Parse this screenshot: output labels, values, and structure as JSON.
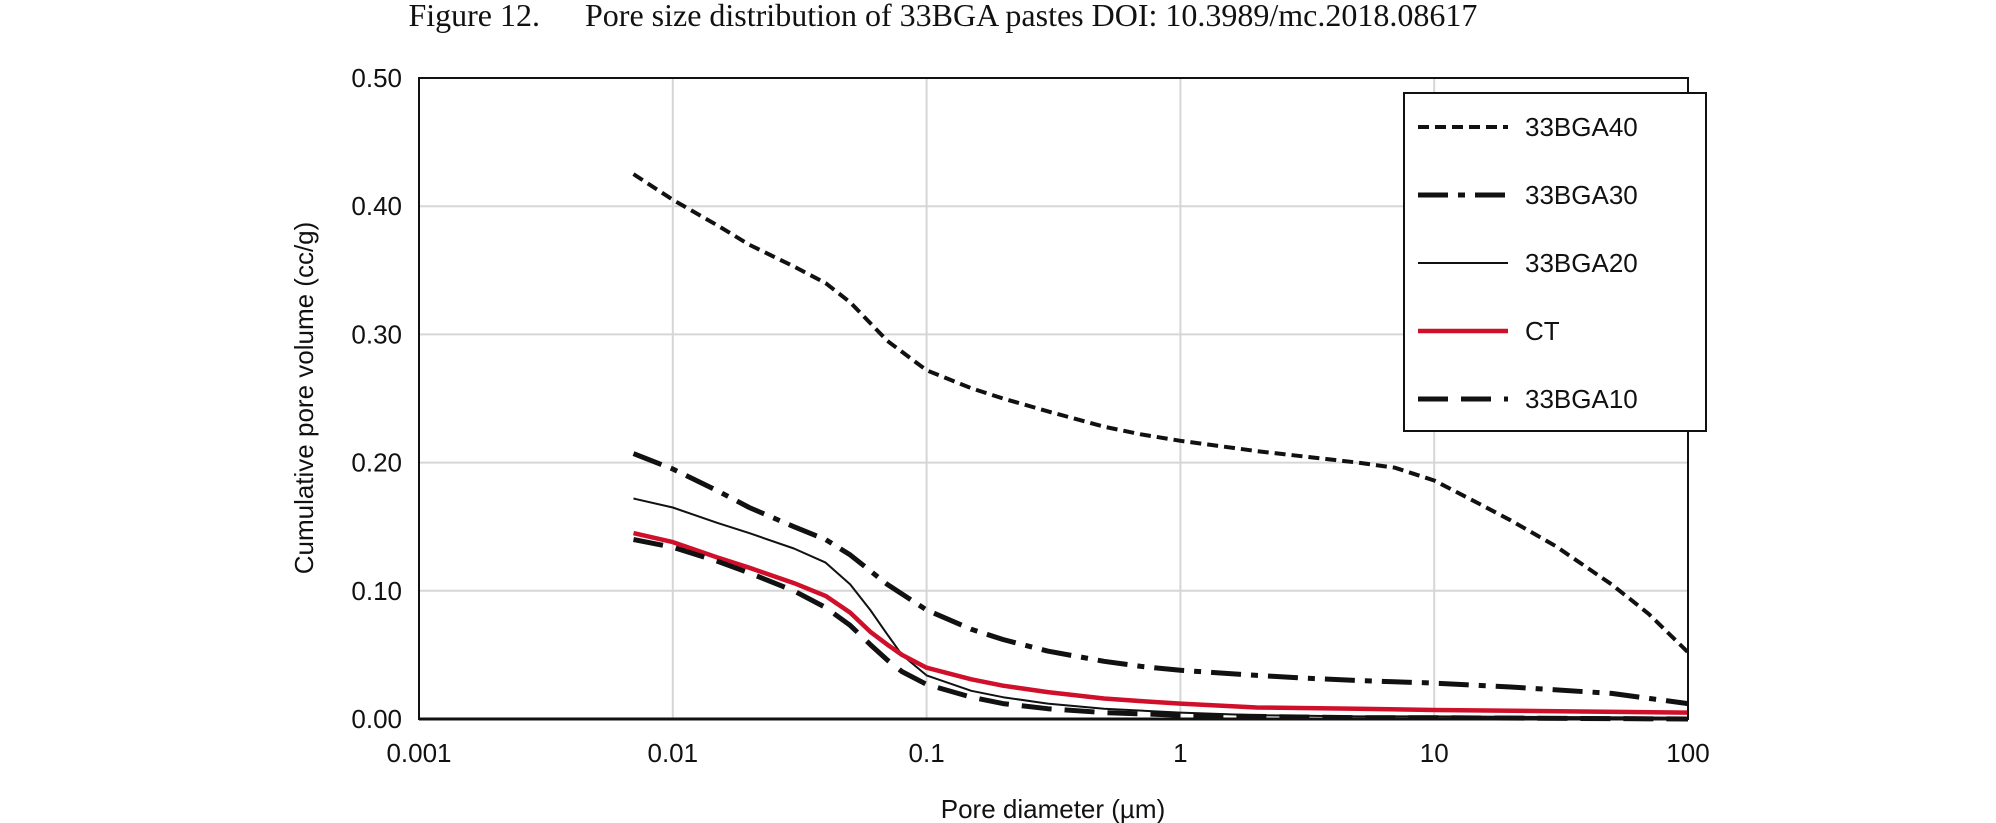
{
  "figure_label": "Figure 12.",
  "chart_data": {
    "type": "line",
    "title": "Pore size distribution of 33BGA pastes DOI: 10.3989/mc.2018.08617",
    "xlabel": "Pore diameter (µm)",
    "ylabel": "Cumulative pore volume (cc/g)",
    "x_scale": "log",
    "xlim": [
      0.001,
      100
    ],
    "ylim": [
      0,
      0.5
    ],
    "x_ticks": [
      {
        "value": 0.001,
        "label": "0.001"
      },
      {
        "value": 0.01,
        "label": "0.01"
      },
      {
        "value": 0.1,
        "label": "0.1"
      },
      {
        "value": 1,
        "label": "1"
      },
      {
        "value": 10,
        "label": "10"
      },
      {
        "value": 100,
        "label": "100"
      }
    ],
    "y_ticks": [
      {
        "value": 0,
        "label": "0.00"
      },
      {
        "value": 0.1,
        "label": "0.10"
      },
      {
        "value": 0.2,
        "label": "0.20"
      },
      {
        "value": 0.3,
        "label": "0.30"
      },
      {
        "value": 0.4,
        "label": "0.40"
      },
      {
        "value": 0.5,
        "label": "0.50"
      }
    ],
    "grid": true,
    "legend_position": "top-right",
    "series": [
      {
        "name": "33BGA40",
        "color": "#111111",
        "dash": "dotted-short",
        "x": [
          0.007,
          0.01,
          0.015,
          0.02,
          0.03,
          0.04,
          0.05,
          0.07,
          0.1,
          0.15,
          0.2,
          0.3,
          0.5,
          0.7,
          1,
          2,
          3,
          5,
          7,
          10,
          15,
          20,
          30,
          50,
          70,
          100
        ],
        "y": [
          0.425,
          0.405,
          0.385,
          0.37,
          0.353,
          0.34,
          0.325,
          0.295,
          0.272,
          0.258,
          0.25,
          0.24,
          0.228,
          0.222,
          0.217,
          0.209,
          0.205,
          0.2,
          0.196,
          0.186,
          0.168,
          0.155,
          0.135,
          0.105,
          0.082,
          0.052
        ]
      },
      {
        "name": "33BGA30",
        "color": "#111111",
        "dash": "dash-dot",
        "x": [
          0.007,
          0.01,
          0.015,
          0.02,
          0.03,
          0.04,
          0.05,
          0.07,
          0.1,
          0.15,
          0.2,
          0.3,
          0.5,
          0.7,
          1,
          2,
          3,
          5,
          10,
          20,
          50,
          100
        ],
        "y": [
          0.207,
          0.195,
          0.178,
          0.165,
          0.15,
          0.14,
          0.128,
          0.105,
          0.085,
          0.07,
          0.062,
          0.053,
          0.045,
          0.041,
          0.038,
          0.034,
          0.032,
          0.03,
          0.028,
          0.025,
          0.02,
          0.012
        ]
      },
      {
        "name": "33BGA20",
        "color": "#111111",
        "dash": "solid-thin",
        "x": [
          0.007,
          0.01,
          0.015,
          0.02,
          0.03,
          0.04,
          0.05,
          0.06,
          0.07,
          0.08,
          0.1,
          0.15,
          0.2,
          0.3,
          0.5,
          1,
          2,
          5,
          10,
          100
        ],
        "y": [
          0.172,
          0.165,
          0.153,
          0.145,
          0.133,
          0.122,
          0.105,
          0.085,
          0.066,
          0.05,
          0.034,
          0.022,
          0.017,
          0.012,
          0.008,
          0.005,
          0.003,
          0.002,
          0.002,
          0.001
        ]
      },
      {
        "name": "CT",
        "color": "#d0102a",
        "dash": "solid-thick",
        "x": [
          0.007,
          0.01,
          0.015,
          0.02,
          0.03,
          0.04,
          0.05,
          0.06,
          0.07,
          0.08,
          0.1,
          0.15,
          0.2,
          0.3,
          0.5,
          0.7,
          1,
          2,
          5,
          10,
          100
        ],
        "y": [
          0.145,
          0.138,
          0.126,
          0.118,
          0.106,
          0.096,
          0.083,
          0.068,
          0.058,
          0.05,
          0.04,
          0.031,
          0.026,
          0.021,
          0.016,
          0.014,
          0.012,
          0.009,
          0.008,
          0.007,
          0.005
        ]
      },
      {
        "name": "33BGA10",
        "color": "#111111",
        "dash": "dash-long",
        "x": [
          0.007,
          0.01,
          0.015,
          0.02,
          0.03,
          0.04,
          0.05,
          0.06,
          0.07,
          0.08,
          0.1,
          0.15,
          0.2,
          0.3,
          0.5,
          1,
          2,
          5,
          10,
          100
        ],
        "y": [
          0.14,
          0.134,
          0.123,
          0.114,
          0.1,
          0.087,
          0.073,
          0.058,
          0.046,
          0.037,
          0.027,
          0.017,
          0.012,
          0.008,
          0.005,
          0.003,
          0.002,
          0.001,
          0.001,
          0.0
        ]
      }
    ]
  }
}
